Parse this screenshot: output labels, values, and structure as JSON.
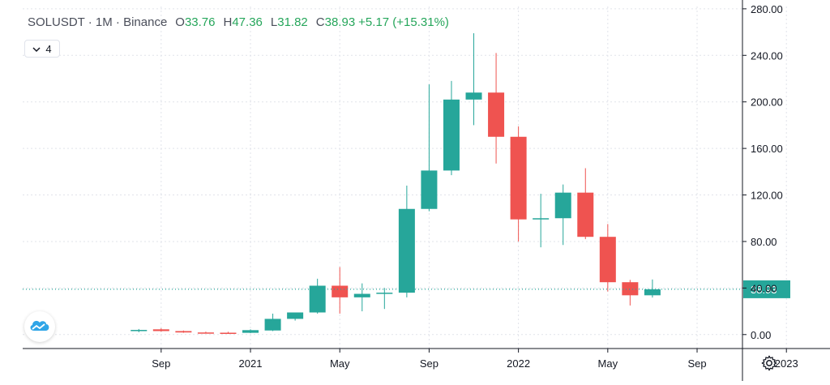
{
  "header": {
    "symbol": "SOLUSDT · 1M · Binance",
    "o_label": "O",
    "o_value": "33.76",
    "h_label": "H",
    "h_value": "47.36",
    "l_label": "L",
    "l_value": "31.82",
    "c_label": "C",
    "c_value": "38.93",
    "change": "+5.17 (+15.31%)"
  },
  "indicators_toggle": {
    "count": "4",
    "icon": "chevron-down-icon"
  },
  "logo": {
    "icon": "tradingview-cloud-logo"
  },
  "settings": {
    "icon": "gear-icon"
  },
  "colors": {
    "up": "#26a69a",
    "down": "#ef5350",
    "last_price_line": "#26a69a",
    "grid": "#e1e3ea"
  },
  "chart_data": {
    "type": "candlestick",
    "title": "SOLUSDT · 1M · Binance",
    "interval": "1M",
    "ylim": [
      -12,
      282
    ],
    "y_ticks": [
      "0.00",
      "40.00",
      "80.00",
      "120.00",
      "160.00",
      "200.00",
      "240.00",
      "280.00"
    ],
    "y_tick_values": [
      0,
      40,
      80,
      120,
      160,
      200,
      240,
      280
    ],
    "x_ticks": [
      {
        "label": "Sep",
        "date": "2020-09"
      },
      {
        "label": "2021",
        "date": "2021-01"
      },
      {
        "label": "May",
        "date": "2021-05"
      },
      {
        "label": "Sep",
        "date": "2021-09"
      },
      {
        "label": "2022",
        "date": "2022-01"
      },
      {
        "label": "May",
        "date": "2022-05"
      },
      {
        "label": "Sep",
        "date": "2022-09"
      },
      {
        "label": "2023",
        "date": "2023-01"
      }
    ],
    "last_price": "38.93",
    "candles": [
      {
        "date": "2020-08",
        "open": 3.0,
        "high": 4.8,
        "low": 2.0,
        "close": 4.0
      },
      {
        "date": "2020-09",
        "open": 4.5,
        "high": 5.5,
        "low": 2.5,
        "close": 3.0
      },
      {
        "date": "2020-10",
        "open": 3.0,
        "high": 3.5,
        "low": 1.5,
        "close": 1.8
      },
      {
        "date": "2020-11",
        "open": 1.8,
        "high": 2.5,
        "low": 1.2,
        "close": 1.5
      },
      {
        "date": "2020-12",
        "open": 1.6,
        "high": 2.4,
        "low": 0.8,
        "close": 1.5
      },
      {
        "date": "2021-01",
        "open": 1.5,
        "high": 4.5,
        "low": 1.2,
        "close": 3.8
      },
      {
        "date": "2021-02",
        "open": 3.5,
        "high": 18.0,
        "low": 3.0,
        "close": 13.5
      },
      {
        "date": "2021-03",
        "open": 13.5,
        "high": 19.0,
        "low": 12.0,
        "close": 19.0
      },
      {
        "date": "2021-04",
        "open": 19.0,
        "high": 48.0,
        "low": 18.0,
        "close": 42.0
      },
      {
        "date": "2021-05",
        "open": 42.0,
        "high": 58.0,
        "low": 18.0,
        "close": 32.0
      },
      {
        "date": "2021-06",
        "open": 32.0,
        "high": 44.0,
        "low": 20.0,
        "close": 35.0
      },
      {
        "date": "2021-07",
        "open": 35.0,
        "high": 40.0,
        "low": 22.0,
        "close": 36.0
      },
      {
        "date": "2021-08",
        "open": 36.0,
        "high": 128.0,
        "low": 32.0,
        "close": 108.0
      },
      {
        "date": "2021-09",
        "open": 108.0,
        "high": 215.0,
        "low": 106.0,
        "close": 141.0
      },
      {
        "date": "2021-10",
        "open": 141.0,
        "high": 218.0,
        "low": 137.0,
        "close": 202.0
      },
      {
        "date": "2021-11",
        "open": 202.0,
        "high": 259.0,
        "low": 180.0,
        "close": 208.0
      },
      {
        "date": "2021-12",
        "open": 208.0,
        "high": 242.0,
        "low": 147.0,
        "close": 170.0
      },
      {
        "date": "2022-01",
        "open": 170.0,
        "high": 179.0,
        "low": 80.0,
        "close": 99.0
      },
      {
        "date": "2022-02",
        "open": 99.0,
        "high": 121.0,
        "low": 75.0,
        "close": 100.0
      },
      {
        "date": "2022-03",
        "open": 100.0,
        "high": 129.0,
        "low": 77.0,
        "close": 122.0
      },
      {
        "date": "2022-04",
        "open": 122.0,
        "high": 143.0,
        "low": 82.0,
        "close": 84.0
      },
      {
        "date": "2022-05",
        "open": 84.0,
        "high": 95.0,
        "low": 37.0,
        "close": 45.0
      },
      {
        "date": "2022-06",
        "open": 45.0,
        "high": 47.0,
        "low": 25.0,
        "close": 33.76
      },
      {
        "date": "2022-07",
        "open": 33.76,
        "high": 47.36,
        "low": 31.82,
        "close": 38.93
      }
    ]
  }
}
